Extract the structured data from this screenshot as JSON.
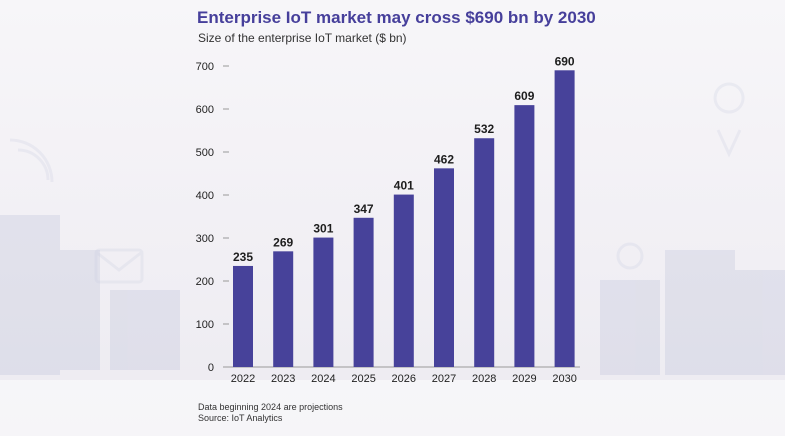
{
  "title": "Enterprise IoT market may cross $690 bn by 2030",
  "subtitle": "Size of the enterprise IoT market ($ bn)",
  "notes": [
    "Data beginning 2024 are projections",
    "Source: IoT Analytics"
  ],
  "colors": {
    "bar": "#47429a",
    "title": "#463f9b"
  },
  "chart_data": {
    "type": "bar",
    "title": "Enterprise IoT market may cross $690 bn by 2030",
    "subtitle": "Size of the enterprise IoT market ($ bn)",
    "xlabel": "",
    "ylabel": "",
    "categories": [
      "2022",
      "2023",
      "2024",
      "2025",
      "2026",
      "2027",
      "2028",
      "2029",
      "2030"
    ],
    "values": [
      235,
      269,
      301,
      347,
      401,
      462,
      532,
      609,
      690
    ],
    "ylim": [
      0,
      700
    ],
    "yticks": [
      0,
      100,
      200,
      300,
      400,
      500,
      600,
      700
    ],
    "data_labels": true,
    "grid": false,
    "legend": "none"
  }
}
